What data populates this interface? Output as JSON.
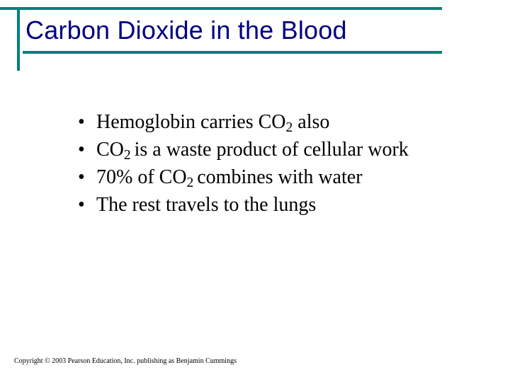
{
  "accent_color": "#008080",
  "title_color": "#000080",
  "text_color": "#000000",
  "title": "Carbon Dioxide in the Blood",
  "bullets": [
    {
      "pre": "Hemoglobin carries CO",
      "sub": "2",
      "post": " also"
    },
    {
      "pre": "CO",
      "sub": "2 ",
      "post": "is a waste product of cellular work"
    },
    {
      "pre": "70% of CO",
      "sub": "2 ",
      "post": "combines with water"
    },
    {
      "pre": "The rest travels to the lungs",
      "sub": "",
      "post": ""
    }
  ],
  "copyright": "Copyright © 2003 Pearson Education, Inc. publishing as Benjamin Cummings"
}
